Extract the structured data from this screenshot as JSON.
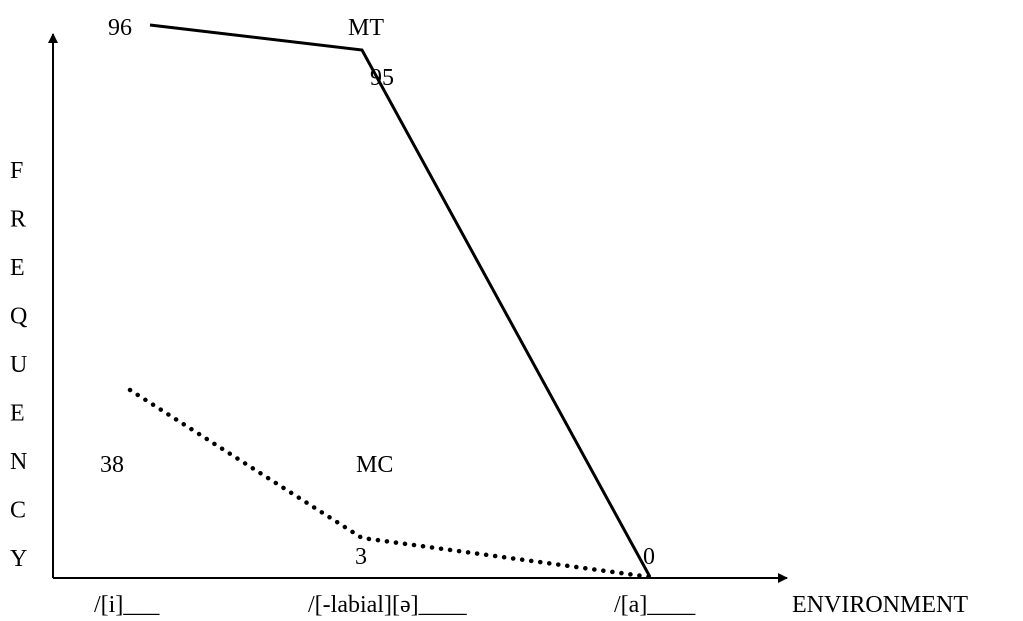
{
  "chart_data": {
    "type": "line",
    "title": "",
    "xlabel": "ENVIRONMENT",
    "ylabel": "FREQUENCY",
    "categories": [
      "/[i]___",
      "/[-labial][ə]____",
      "/[a]____"
    ],
    "ylim": [
      0,
      100
    ],
    "grid": false,
    "series": [
      {
        "name": "MT",
        "values": [
          96,
          95,
          0
        ],
        "point_labels": [
          "96",
          "95",
          "0"
        ],
        "line_style": "solid",
        "color": "#000000"
      },
      {
        "name": "MC",
        "values": [
          38,
          3,
          0
        ],
        "point_labels": [
          "38",
          "3",
          ""
        ],
        "line_style": "dotted",
        "color": "#000000"
      }
    ]
  }
}
